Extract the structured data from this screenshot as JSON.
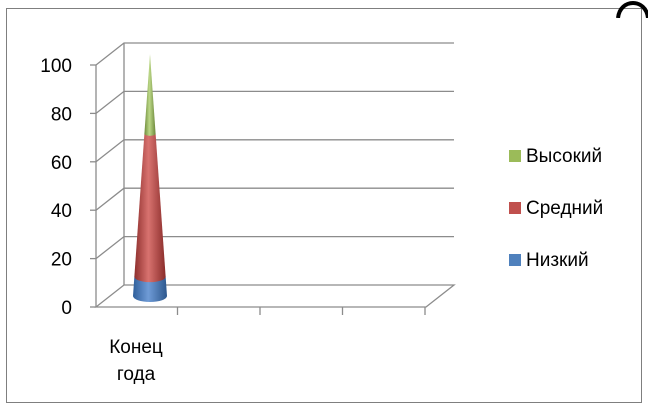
{
  "chart_data": {
    "type": "bar",
    "style": "3d-stacked-cone",
    "title": "",
    "xlabel": "",
    "ylabel": "",
    "categories": [
      "Конец года"
    ],
    "series": [
      {
        "name": "Низкий",
        "values": [
          8
        ]
      },
      {
        "name": "Средний",
        "values": [
          59
        ]
      },
      {
        "name": "Высокий",
        "values": [
          33
        ]
      }
    ],
    "ylim": [
      0,
      100
    ],
    "yticks": [
      "0",
      "20",
      "40",
      "60",
      "80",
      "100"
    ],
    "grid": true,
    "legend_position": "right",
    "colors": {
      "Низкий": "#4f81bd",
      "Средний": "#c0504d",
      "Высокий": "#9bbb59"
    }
  }
}
